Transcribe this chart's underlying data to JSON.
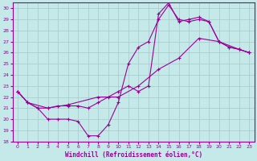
{
  "xlabel": "Windchill (Refroidissement éolien,°C)",
  "bg_color": "#c5e8e8",
  "grid_color": "#aacece",
  "line_color": "#990099",
  "xlim": [
    -0.5,
    23.5
  ],
  "ylim": [
    18,
    30.5
  ],
  "xticks": [
    0,
    1,
    2,
    3,
    4,
    5,
    6,
    7,
    8,
    9,
    10,
    11,
    12,
    13,
    14,
    15,
    16,
    17,
    18,
    19,
    20,
    21,
    22,
    23
  ],
  "yticks": [
    18,
    19,
    20,
    21,
    22,
    23,
    24,
    25,
    26,
    27,
    28,
    29,
    30
  ],
  "series1_x": [
    0,
    1,
    2,
    3,
    4,
    5,
    6,
    7,
    8,
    9,
    10,
    11,
    12,
    13,
    14,
    15,
    16,
    17,
    18,
    19,
    20,
    21,
    22,
    23
  ],
  "series1_y": [
    22.5,
    21.5,
    21.0,
    20.0,
    20.0,
    20.0,
    19.8,
    18.5,
    18.5,
    19.5,
    21.5,
    25.0,
    26.5,
    27.0,
    29.0,
    30.3,
    29.0,
    28.8,
    29.0,
    28.8,
    27.0,
    26.5,
    26.3,
    26.0
  ],
  "series2_x": [
    0,
    1,
    2,
    3,
    4,
    5,
    6,
    7,
    8,
    9,
    10,
    11,
    12,
    13,
    14,
    15,
    16,
    17,
    18,
    19,
    20,
    21,
    22,
    23
  ],
  "series2_y": [
    22.5,
    21.5,
    21.0,
    21.0,
    21.2,
    21.2,
    21.2,
    21.0,
    21.5,
    22.0,
    22.5,
    23.0,
    22.5,
    23.0,
    29.5,
    30.5,
    28.8,
    29.0,
    29.2,
    28.8,
    27.0,
    26.5,
    26.3,
    26.0
  ],
  "series3_x": [
    0,
    1,
    3,
    5,
    8,
    10,
    12,
    14,
    16,
    18,
    20,
    22,
    23
  ],
  "series3_y": [
    22.5,
    21.5,
    21.0,
    21.3,
    22.0,
    22.0,
    23.0,
    24.5,
    25.5,
    27.3,
    27.0,
    26.3,
    26.0
  ]
}
